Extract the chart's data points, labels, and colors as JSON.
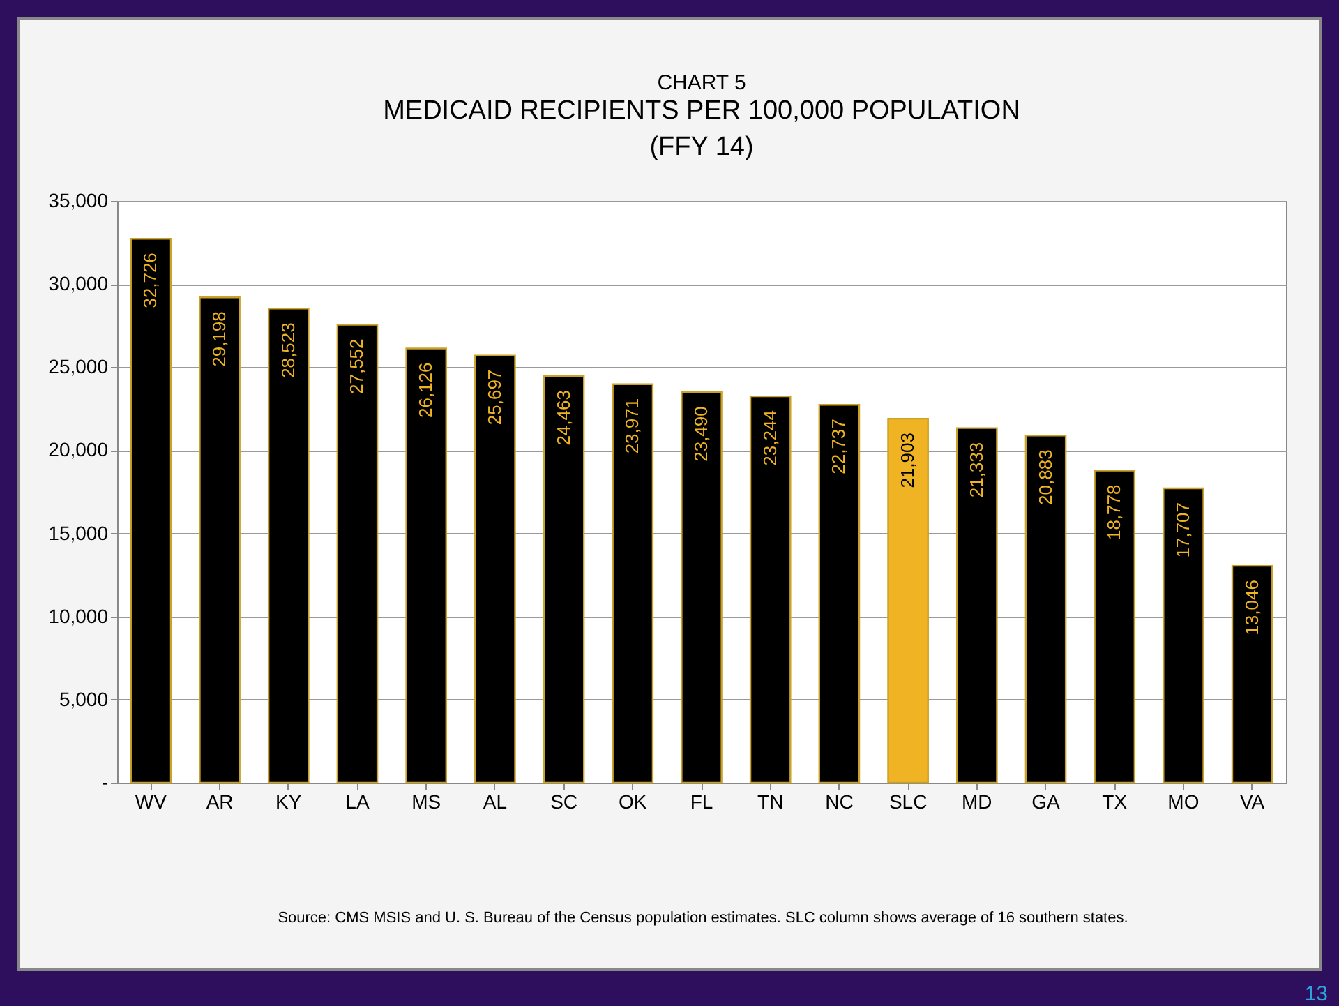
{
  "chart_data": {
    "type": "bar",
    "title": "CHART 5",
    "subtitle": "MEDICAID  RECIPIENTS  PER  100,000 POPULATION\n(FFY 14)",
    "categories": [
      "WV",
      "AR",
      "KY",
      "LA",
      "MS",
      "AL",
      "SC",
      "OK",
      "FL",
      "TN",
      "NC",
      "SLC",
      "MD",
      "GA",
      "TX",
      "MO",
      "VA"
    ],
    "values": [
      32726,
      29198,
      28523,
      27552,
      26126,
      25697,
      24463,
      23971,
      23490,
      23244,
      22737,
      21903,
      21333,
      20883,
      18778,
      17707,
      13046
    ],
    "colors": [
      "#000000",
      "#000000",
      "#000000",
      "#000000",
      "#000000",
      "#000000",
      "#000000",
      "#000000",
      "#000000",
      "#000000",
      "#000000",
      "#f0b323",
      "#000000",
      "#000000",
      "#000000",
      "#000000",
      "#000000"
    ],
    "value_labels": [
      "32,726",
      "29,198",
      "28,523",
      "27,552",
      "26,126",
      "25,697",
      "24,463",
      "23,971",
      "23,490",
      "23,244",
      "22,737",
      "21,903",
      "21,333",
      "20,883",
      "18,778",
      "17,707",
      "13,046"
    ],
    "ylim": [
      0,
      35000
    ],
    "yticks": [
      {
        "value": 0,
        "label": "-"
      },
      {
        "value": 5000,
        "label": "5,000"
      },
      {
        "value": 10000,
        "label": "10,000"
      },
      {
        "value": 15000,
        "label": "15,000"
      },
      {
        "value": 20000,
        "label": "20,000"
      },
      {
        "value": 25000,
        "label": "25,000"
      },
      {
        "value": 30000,
        "label": "30,000"
      },
      {
        "value": 35000,
        "label": "35,000"
      }
    ],
    "grid": "y",
    "annotations": [
      "Source:  CMS MSIS and U. S. Bureau of the Census population estimates.  SLC column shows average of 16 southern states.",
      "13"
    ]
  }
}
